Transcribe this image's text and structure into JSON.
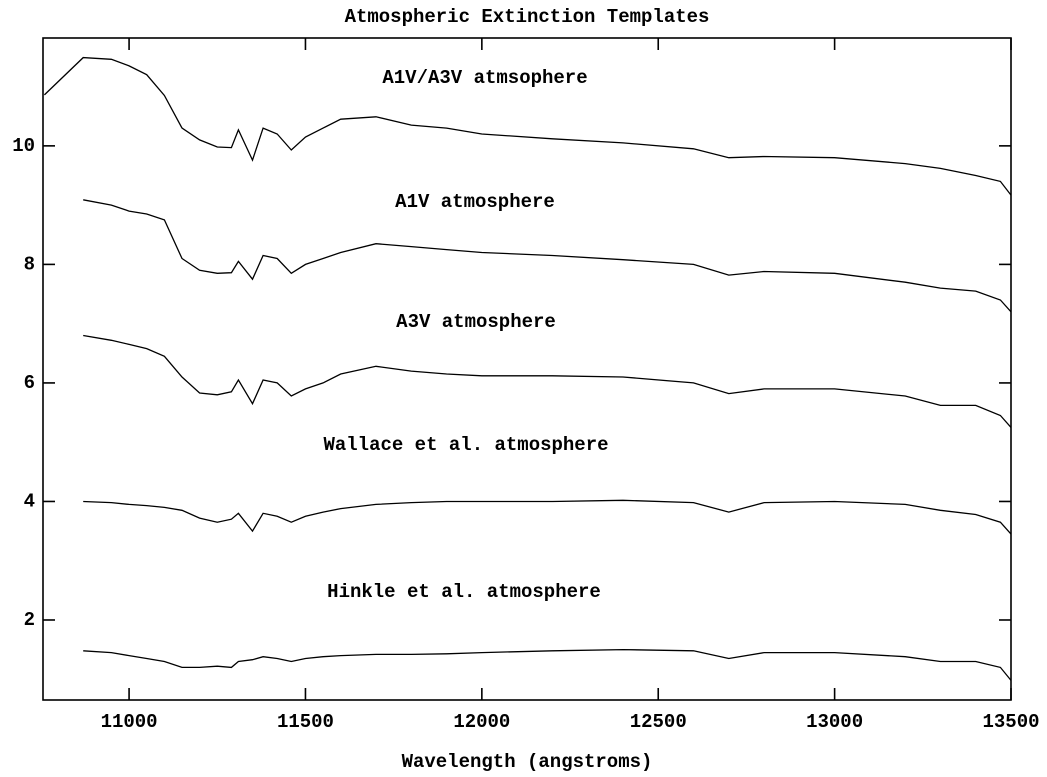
{
  "chart_data": {
    "type": "line",
    "title": "Atmospheric Extinction Templates",
    "x_label": "Wavelength (angstroms)",
    "xlim": [
      10756,
      13500
    ],
    "ylim": [
      0.65,
      11.82
    ],
    "xticks": [
      11000,
      11500,
      12000,
      12500,
      13000,
      13500
    ],
    "yticks": [
      2,
      4,
      6,
      8,
      10
    ],
    "color": "#000000",
    "x": [
      10760,
      10870,
      10950,
      11000,
      11050,
      11100,
      11150,
      11200,
      11250,
      11290,
      11310,
      11350,
      11380,
      11420,
      11460,
      11500,
      11550,
      11600,
      11700,
      11800,
      11900,
      12000,
      12200,
      12400,
      12600,
      12700,
      12800,
      13000,
      13200,
      13300,
      13400,
      13470,
      13500
    ],
    "series": [
      {
        "name": "A1V/A3V atmsophere",
        "values": [
          10.86,
          11.49,
          11.46,
          11.35,
          11.2,
          10.85,
          10.3,
          10.1,
          9.98,
          9.97,
          10.27,
          9.76,
          10.3,
          10.2,
          9.93,
          10.15,
          10.3,
          10.45,
          10.49,
          10.35,
          10.3,
          10.2,
          10.12,
          10.05,
          9.95,
          9.8,
          9.82,
          9.8,
          9.7,
          9.62,
          9.5,
          9.4,
          9.17
        ]
      },
      {
        "name": "A1V atmosphere",
        "values": [
          null,
          9.09,
          9.0,
          8.9,
          8.85,
          8.75,
          8.1,
          7.9,
          7.85,
          7.86,
          8.05,
          7.75,
          8.15,
          8.1,
          7.85,
          8.0,
          8.1,
          8.2,
          8.35,
          8.3,
          8.25,
          8.2,
          8.15,
          8.08,
          8.0,
          7.82,
          7.88,
          7.85,
          7.7,
          7.6,
          7.55,
          7.4,
          7.2
        ]
      },
      {
        "name": "A3V atmosphere",
        "values": [
          null,
          6.8,
          6.72,
          6.65,
          6.58,
          6.45,
          6.1,
          5.83,
          5.8,
          5.85,
          6.05,
          5.65,
          6.05,
          6.0,
          5.78,
          5.9,
          6.0,
          6.15,
          6.28,
          6.2,
          6.15,
          6.12,
          6.12,
          6.1,
          6.0,
          5.82,
          5.9,
          5.9,
          5.78,
          5.62,
          5.62,
          5.45,
          5.25
        ]
      },
      {
        "name": "Wallace et al. atmosphere",
        "values": [
          null,
          4.0,
          3.98,
          3.95,
          3.93,
          3.9,
          3.85,
          3.72,
          3.65,
          3.7,
          3.8,
          3.5,
          3.8,
          3.75,
          3.65,
          3.75,
          3.82,
          3.88,
          3.95,
          3.98,
          4.0,
          4.0,
          4.0,
          4.02,
          3.98,
          3.82,
          3.98,
          4.0,
          3.95,
          3.85,
          3.78,
          3.65,
          3.45
        ]
      },
      {
        "name": "Hinkle et al. atmosphere",
        "values": [
          null,
          1.48,
          1.45,
          1.4,
          1.35,
          1.3,
          1.2,
          1.2,
          1.22,
          1.2,
          1.3,
          1.33,
          1.38,
          1.35,
          1.3,
          1.35,
          1.38,
          1.4,
          1.42,
          1.42,
          1.43,
          1.45,
          1.48,
          1.5,
          1.48,
          1.35,
          1.45,
          1.45,
          1.38,
          1.3,
          1.3,
          1.2,
          0.98
        ]
      }
    ]
  }
}
